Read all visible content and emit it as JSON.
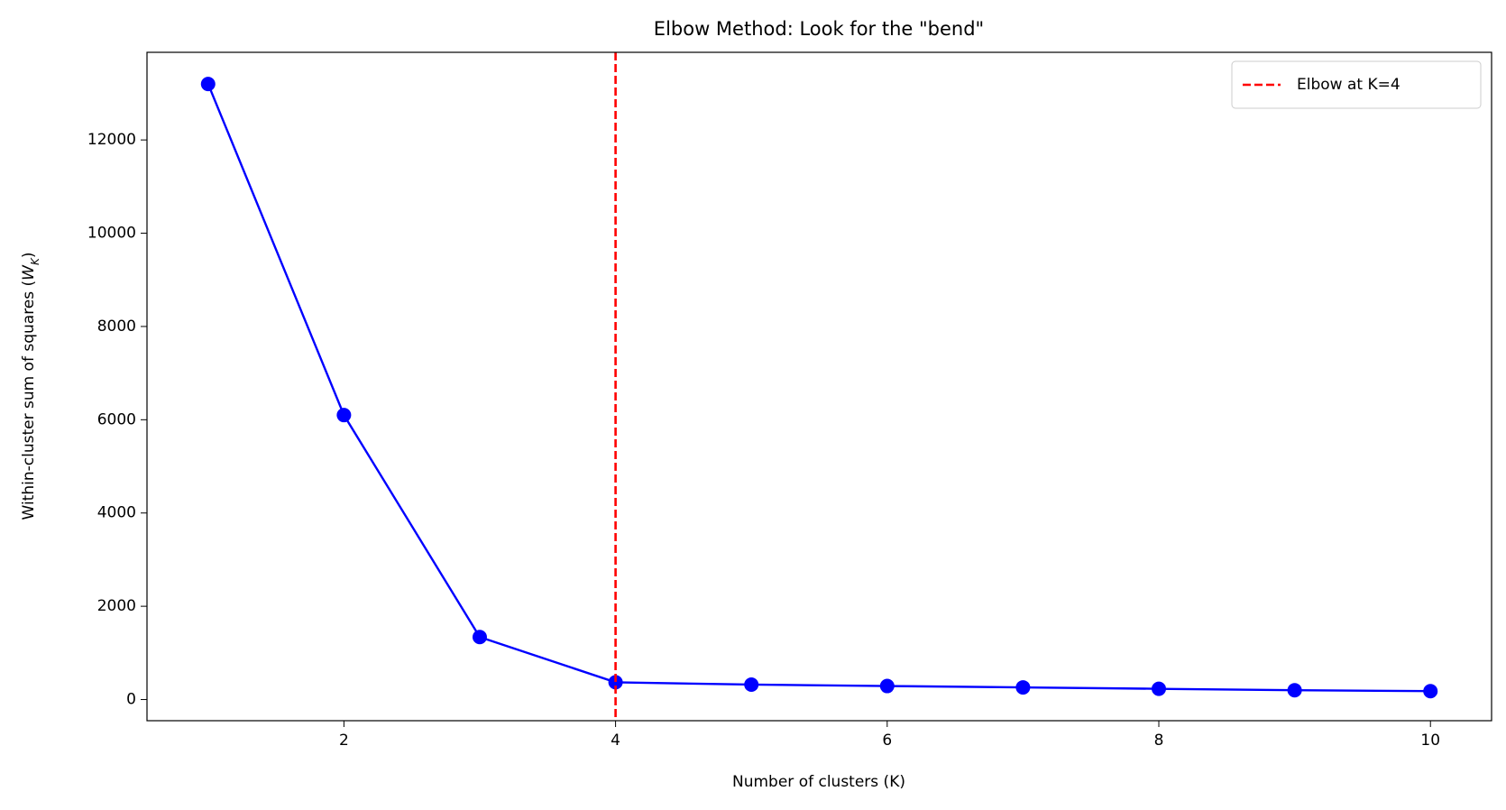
{
  "chart_data": {
    "type": "line",
    "title": "Elbow Method: Look for the \"bend\"",
    "xlabel": "Number of clusters (K)",
    "ylabel": "Within-cluster sum of squares (W_K)",
    "x": [
      1,
      2,
      3,
      4,
      5,
      6,
      7,
      8,
      9,
      10
    ],
    "series": [
      {
        "color": "#0000ff",
        "values": [
          13200,
          6100,
          1340,
          370,
          320,
          290,
          260,
          230,
          200,
          180
        ]
      }
    ],
    "vlines": [
      {
        "x": 4,
        "label": "Elbow at K=4",
        "color": "#ff0000"
      }
    ],
    "xlim": [
      0.55,
      10.45
    ],
    "xticks": [
      2,
      4,
      6,
      8,
      10
    ],
    "ylim": [
      -454,
      13879
    ],
    "yticks": [
      0,
      2000,
      4000,
      6000,
      8000,
      10000,
      12000
    ],
    "legend": "upper right"
  }
}
